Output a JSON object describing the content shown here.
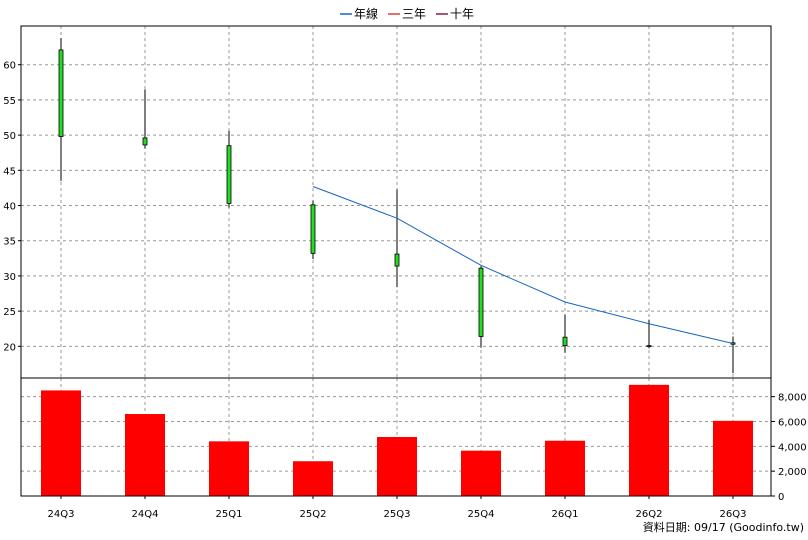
{
  "legend": {
    "items": [
      {
        "label": "年線",
        "color": "#1565C0"
      },
      {
        "label": "三年",
        "color": "#E53935"
      },
      {
        "label": "十年",
        "color": "#8E1E3B"
      }
    ]
  },
  "footer": {
    "text": "資料日期: 09/17  (Goodinfo.tw)"
  },
  "chart_data": [
    {
      "type": "candlestick",
      "categories": [
        "24Q3",
        "24Q4",
        "25Q1",
        "25Q2",
        "25Q3",
        "25Q4",
        "26Q1",
        "26Q2",
        "26Q3"
      ],
      "ohlc": [
        {
          "open": 49.8,
          "high": 63.8,
          "low": 43.5,
          "close": 62.1
        },
        {
          "open": 48.6,
          "high": 56.5,
          "low": 48.1,
          "close": 49.6
        },
        {
          "open": 40.3,
          "high": 50.6,
          "low": 39.7,
          "close": 48.5
        },
        {
          "open": 33.2,
          "high": 40.7,
          "low": 32.4,
          "close": 40.1
        },
        {
          "open": 31.4,
          "high": 42.3,
          "low": 28.4,
          "close": 33.1
        },
        {
          "open": 21.4,
          "high": 31.4,
          "low": 19.8,
          "close": 31.1
        },
        {
          "open": 20.1,
          "high": 24.5,
          "low": 19.1,
          "close": 21.3
        },
        {
          "open": 20.0,
          "high": 23.8,
          "low": 19.7,
          "close": 20.1
        },
        {
          "open": 20.3,
          "high": 21.4,
          "low": 16.2,
          "close": 20.5
        }
      ],
      "series": [
        {
          "name": "年線",
          "color": "#1565C0",
          "values": [
            null,
            null,
            null,
            42.7,
            38.2,
            31.5,
            26.3,
            23.2,
            20.4
          ]
        }
      ],
      "y_ticks": [
        20,
        25,
        30,
        35,
        40,
        45,
        50,
        55,
        60
      ],
      "ylim": [
        15.5,
        65.5
      ],
      "up_color": "#22DD22",
      "down_color": "#FF0000",
      "grid": true
    },
    {
      "type": "bar",
      "categories": [
        "24Q3",
        "24Q4",
        "25Q1",
        "25Q2",
        "25Q3",
        "25Q4",
        "26Q1",
        "26Q2",
        "26Q3"
      ],
      "values": [
        8500,
        6600,
        4400,
        2800,
        4750,
        3650,
        4450,
        8950,
        6050
      ],
      "y_ticks": [
        "0",
        "2,000",
        "4,000",
        "6,000",
        "8,000"
      ],
      "y_tick_values": [
        0,
        2000,
        4000,
        6000,
        8000
      ],
      "ylim": [
        0,
        9500
      ],
      "bar_color": "#FF0000",
      "grid": true
    }
  ]
}
